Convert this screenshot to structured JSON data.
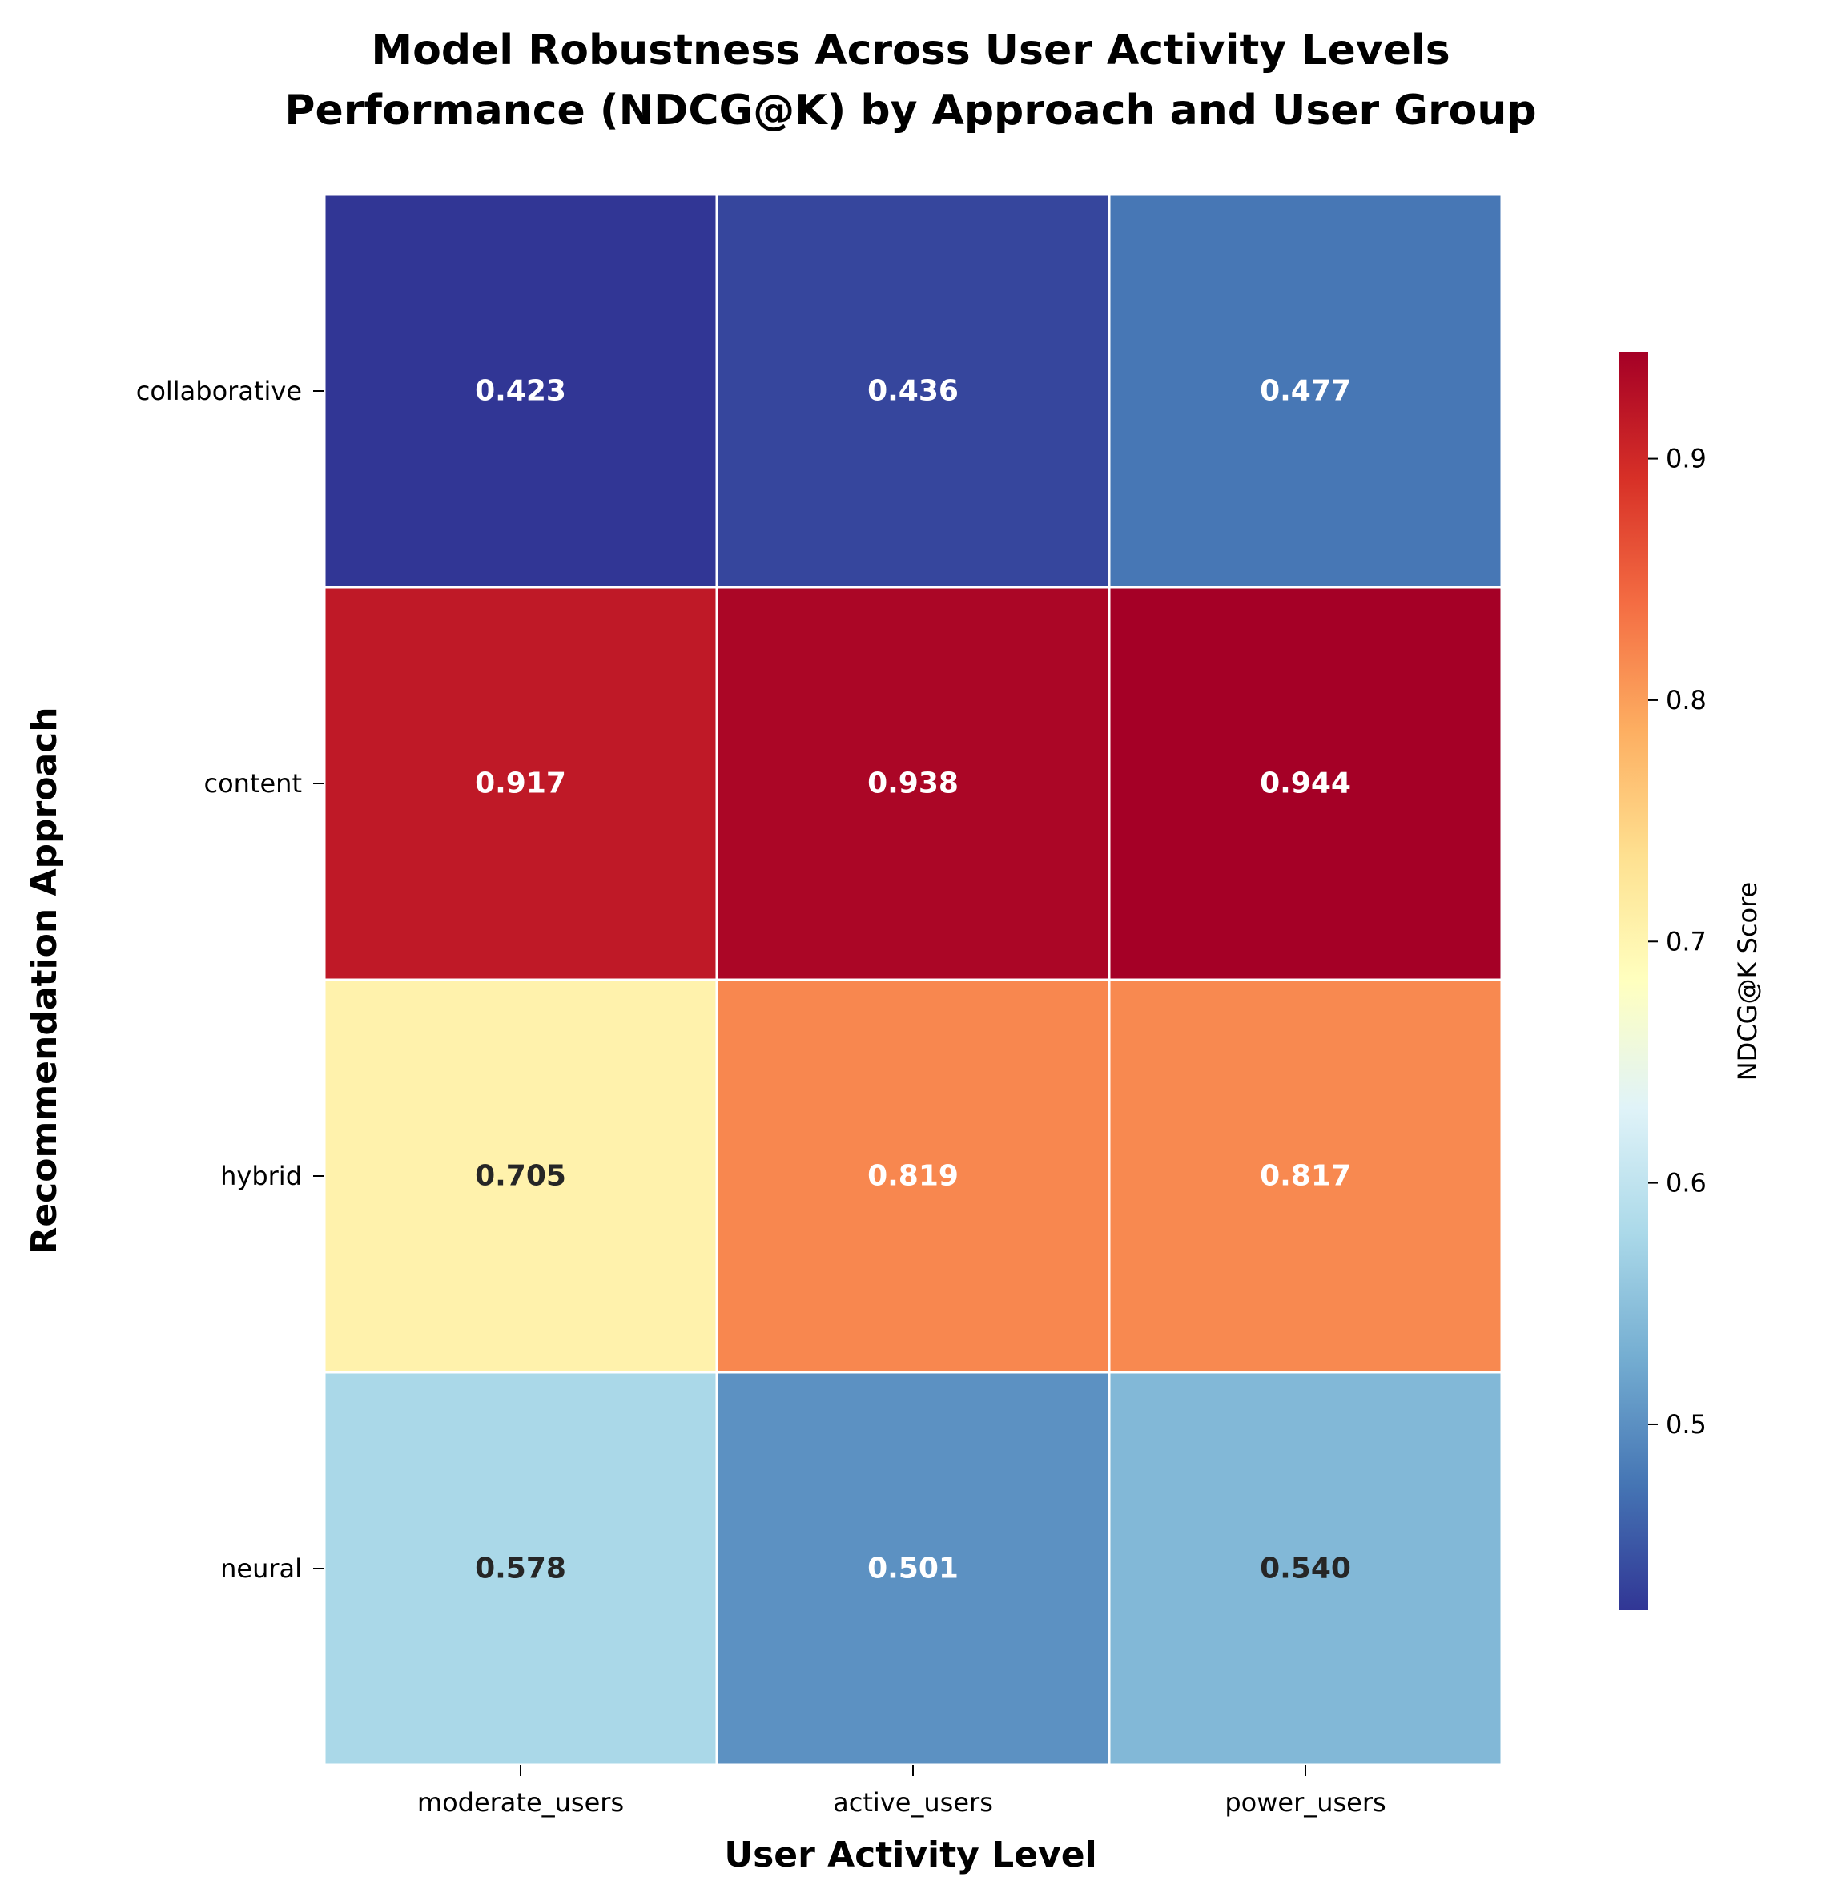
{
  "chart_data": {
    "type": "heatmap",
    "title": [
      "Model Robustness Across User Activity Levels",
      "Performance (NDCG@K) by Approach and User Group"
    ],
    "xlabel": "User Activity Level",
    "ylabel": "Recommendation Approach",
    "x_categories": [
      "moderate_users",
      "active_users",
      "power_users"
    ],
    "y_categories": [
      "collaborative",
      "content",
      "hybrid",
      "neural"
    ],
    "values": [
      [
        0.423,
        0.436,
        0.477
      ],
      [
        0.917,
        0.938,
        0.944
      ],
      [
        0.705,
        0.819,
        0.817
      ],
      [
        0.578,
        0.501,
        0.54
      ]
    ],
    "value_format": "3 decimals",
    "colormap": "RdYlBu_r",
    "colorbar": {
      "label": "NDCG@K Score",
      "vmin": 0.423,
      "vmax": 0.944,
      "ticks": [
        0.5,
        0.6,
        0.7,
        0.8,
        0.9
      ],
      "tick_labels": [
        "0.5",
        "0.6",
        "0.7",
        "0.8",
        "0.9"
      ]
    },
    "grid": false
  }
}
